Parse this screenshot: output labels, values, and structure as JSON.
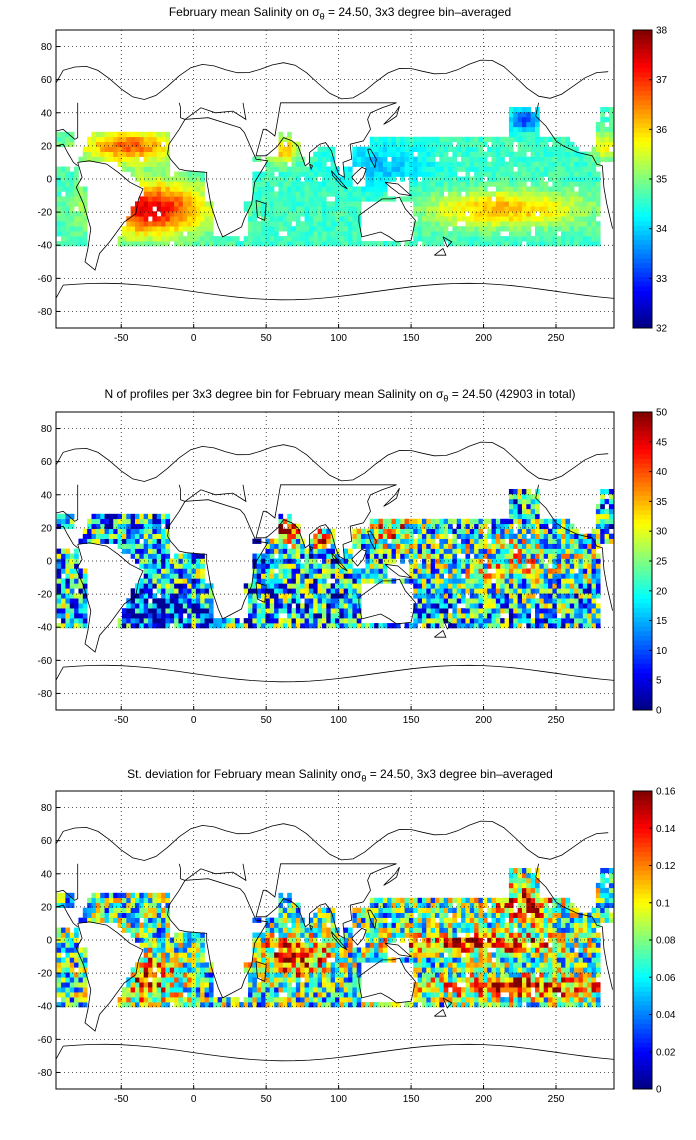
{
  "panels": [
    {
      "title_pre": "February mean Salinity on ",
      "title_sigma": "σ",
      "title_sub": "θ",
      "title_post": " = 24.50, 3x3 degree bin–averaged"
    },
    {
      "title_pre": "N of profiles per 3x3 degree bin for February mean Salinity on ",
      "title_sigma": "σ",
      "title_sub": "θ",
      "title_post": " = 24.50 (42903 in total)"
    },
    {
      "title_pre": "St. deviation for February mean Salinity on",
      "title_sigma": "σ",
      "title_sub": "θ",
      "title_post": " = 24.50, 3x3 degree bin–averaged"
    }
  ],
  "colormap": "jet",
  "chart_data": [
    {
      "type": "heatmap",
      "title": "February mean Salinity on σθ = 24.50, 3x3 degree bin–averaged",
      "xlim": [
        -95,
        290
      ],
      "ylim": [
        -90,
        90
      ],
      "x_ticks": [
        -50,
        0,
        50,
        100,
        150,
        200,
        250
      ],
      "y_ticks": [
        80,
        60,
        40,
        20,
        0,
        -20,
        -40,
        -60,
        -80
      ],
      "grid": true,
      "colorbar": {
        "min": 32,
        "max": 38,
        "ticks": [
          38,
          37,
          36,
          35,
          34,
          33,
          32
        ]
      },
      "field_summary": "High salinity (36-37.5) in subtropical North and South Atlantic and Arabian Sea; ~35.5-36.5 in South Pacific gyre; ~34-35 in equatorial/western Pacific and Indian Ocean; lower (~33) at northern Pacific edge."
    },
    {
      "type": "heatmap",
      "title": "N of profiles per 3x3 degree bin for February mean Salinity on σθ = 24.50 (42903 in total)",
      "xlim": [
        -95,
        290
      ],
      "ylim": [
        -90,
        90
      ],
      "x_ticks": [
        -50,
        0,
        50,
        100,
        150,
        200,
        250
      ],
      "y_ticks": [
        80,
        60,
        40,
        20,
        0,
        -20,
        -40,
        -60,
        -80
      ],
      "grid": true,
      "total_profiles": 42903,
      "colorbar": {
        "min": 0,
        "max": 50,
        "ticks": [
          50,
          45,
          40,
          35,
          30,
          25,
          20,
          15,
          10,
          5,
          0
        ]
      },
      "field_summary": "Counts mostly 10-35 per bin; maxima (>45) in Arabian Sea, Bay of Bengal and western North Pacific; low counts (<10) at southern and northern fringes."
    },
    {
      "type": "heatmap",
      "title": "St. deviation for February mean Salinity onσθ = 24.50, 3x3 degree bin–averaged",
      "xlim": [
        -95,
        290
      ],
      "ylim": [
        -90,
        90
      ],
      "x_ticks": [
        -50,
        0,
        50,
        100,
        150,
        200,
        250
      ],
      "y_ticks": [
        80,
        60,
        40,
        20,
        0,
        -20,
        -40,
        -60,
        -80
      ],
      "grid": true,
      "colorbar": {
        "min": 0,
        "max": 0.16,
        "ticks": [
          0.16,
          0.14,
          0.12,
          0.1,
          0.08,
          0.06,
          0.04,
          0.02,
          0
        ]
      },
      "field_summary": "Std dev > 0.14 in bands of the Pacific near 0° and 30°S, South Atlantic, and Indian Ocean; values ~0.04-0.1 elsewhere."
    }
  ]
}
